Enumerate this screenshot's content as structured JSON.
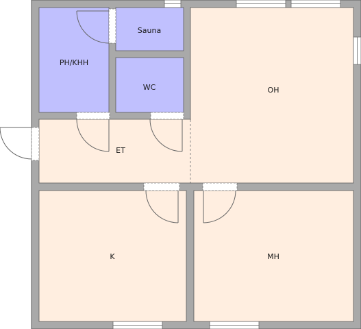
{
  "floorplan": {
    "colors": {
      "wall": "#a9a9a9",
      "wall_edge": "#5a5a5a",
      "wet_room": "#c0c0fe",
      "dry_room": "#ffeee0",
      "door_line": "#666666"
    },
    "rooms": {
      "ph_khh": "PH/KHH",
      "sauna": "Sauna",
      "wc": "WC",
      "oh": "OH",
      "et": "ET",
      "k": "K",
      "mh": "MH"
    }
  }
}
